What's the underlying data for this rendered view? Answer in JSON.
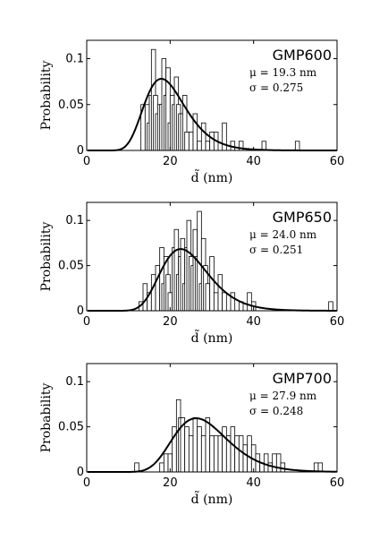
{
  "chart_data": [
    {
      "type": "bar",
      "title": "GMP600",
      "annotations": [
        "μ = 19.3 nm",
        "σ = 0.275"
      ],
      "xlabel": "d̃ (nm)",
      "ylabel": "Probability",
      "xlim": [
        0,
        60
      ],
      "ylim": [
        0,
        0.12
      ],
      "xticks": [
        "0",
        "20",
        "40",
        "60"
      ],
      "yticks": [
        "0",
        "0.05",
        "0.1"
      ],
      "grid": false,
      "histogram": {
        "x": [
          13.5,
          14.5,
          15.0,
          15.5,
          16.0,
          16.5,
          17.0,
          17.5,
          18.0,
          18.5,
          19.0,
          19.5,
          20.0,
          20.5,
          21.0,
          21.5,
          22.0,
          22.5,
          23.0,
          23.5,
          24.0,
          25.0,
          26.0,
          27.0,
          28.0,
          29.0,
          30.0,
          31.0,
          33.0,
          35.0,
          37.0,
          42.5,
          50.5
        ],
        "values": [
          0.05,
          0.05,
          0.03,
          0.06,
          0.11,
          0.06,
          0.04,
          0.05,
          0.05,
          0.1,
          0.06,
          0.09,
          0.03,
          0.06,
          0.05,
          0.08,
          0.05,
          0.04,
          0.04,
          0.06,
          0.02,
          0.02,
          0.04,
          0.01,
          0.03,
          0.01,
          0.02,
          0.02,
          0.03,
          0.01,
          0.01,
          0.01,
          0.01
        ]
      },
      "fit_curve": {
        "mu": 19.3,
        "sigma": 0.275
      }
    },
    {
      "type": "bar",
      "title": "GMP650",
      "annotations": [
        "μ = 24.0 nm",
        "σ = 0.251"
      ],
      "xlabel": "d̃ (nm)",
      "ylabel": "Probability",
      "xlim": [
        0,
        60
      ],
      "ylim": [
        0,
        0.12
      ],
      "xticks": [
        "0",
        "20",
        "40",
        "60"
      ],
      "yticks": [
        "0",
        "0.05",
        "0.1"
      ],
      "grid": false,
      "histogram": {
        "x": [
          13.0,
          14.0,
          15.0,
          16.0,
          17.0,
          18.0,
          18.5,
          19.0,
          19.5,
          20.0,
          21.0,
          21.5,
          22.0,
          22.5,
          23.0,
          23.5,
          24.0,
          24.5,
          25.0,
          25.5,
          26.0,
          26.5,
          27.0,
          27.5,
          28.0,
          28.5,
          29.0,
          30.0,
          31.0,
          32.0,
          33.0,
          35.0,
          37.0,
          39.0,
          40.0,
          58.5
        ],
        "values": [
          0.01,
          0.03,
          0.02,
          0.04,
          0.05,
          0.07,
          0.03,
          0.06,
          0.04,
          0.02,
          0.07,
          0.09,
          0.04,
          0.06,
          0.08,
          0.03,
          0.07,
          0.1,
          0.06,
          0.05,
          0.09,
          0.06,
          0.11,
          0.03,
          0.08,
          0.05,
          0.03,
          0.06,
          0.02,
          0.04,
          0.02,
          0.02,
          0.01,
          0.02,
          0.01,
          0.01
        ]
      },
      "fit_curve": {
        "mu": 24.0,
        "sigma": 0.251
      }
    },
    {
      "type": "bar",
      "title": "GMP700",
      "annotations": [
        "μ = 27.9 nm",
        "σ = 0.248"
      ],
      "xlabel": "d̃ (nm)",
      "ylabel": "Probability",
      "xlim": [
        0,
        60
      ],
      "ylim": [
        0,
        0.12
      ],
      "xticks": [
        "0",
        "20",
        "40",
        "60"
      ],
      "yticks": [
        "0",
        "0.05",
        "0.1"
      ],
      "grid": false,
      "histogram": {
        "x": [
          12.0,
          18.0,
          19.0,
          20.0,
          21.0,
          22.0,
          22.5,
          23.0,
          24.0,
          25.0,
          26.0,
          27.0,
          28.0,
          29.0,
          30.0,
          31.0,
          32.0,
          33.0,
          34.0,
          35.0,
          36.0,
          37.0,
          38.0,
          39.0,
          40.0,
          41.0,
          42.0,
          43.0,
          44.0,
          45.0,
          46.0,
          47.0,
          55.0,
          56.0
        ],
        "values": [
          0.01,
          0.01,
          0.02,
          0.02,
          0.05,
          0.08,
          0.06,
          0.06,
          0.05,
          0.04,
          0.06,
          0.05,
          0.04,
          0.06,
          0.04,
          0.04,
          0.04,
          0.05,
          0.04,
          0.05,
          0.04,
          0.04,
          0.03,
          0.04,
          0.03,
          0.02,
          0.01,
          0.02,
          0.01,
          0.02,
          0.02,
          0.01,
          0.01,
          0.01
        ]
      },
      "fit_curve": {
        "mu": 27.9,
        "sigma": 0.248
      }
    }
  ]
}
